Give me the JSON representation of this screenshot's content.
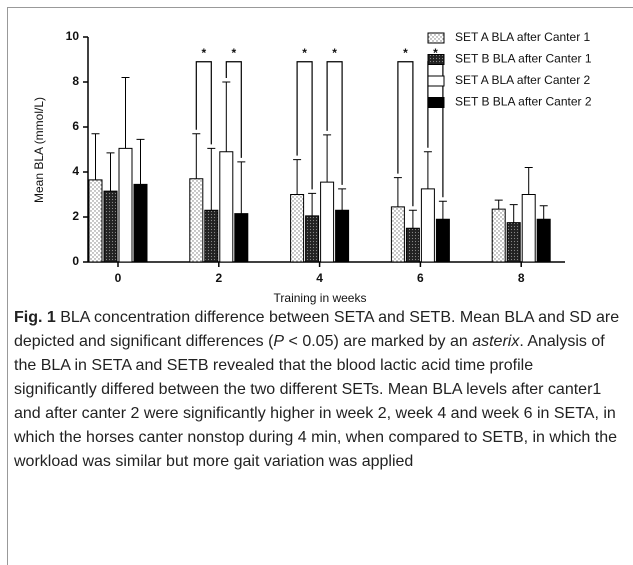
{
  "chart_data": {
    "type": "bar",
    "xlabel": "Training in weeks",
    "ylabel": "Mean BLA (mmol/L)",
    "categories": [
      "0",
      "2",
      "4",
      "6",
      "8"
    ],
    "ylim": [
      0,
      10
    ],
    "yticks": [
      0,
      2,
      4,
      6,
      8,
      10
    ],
    "legend": "top-right",
    "series": [
      {
        "name": "SET A BLA after Canter 1",
        "color": "#9a9a9a",
        "fill_style": "sparse-dots",
        "values": [
          3.65,
          3.7,
          3.0,
          2.45,
          2.35
        ],
        "errors": [
          2.05,
          2.0,
          1.55,
          1.3,
          0.4
        ]
      },
      {
        "name": "SET B BLA after Canter 1",
        "color": "#2a2a2a",
        "fill_style": "dense-dots",
        "values": [
          3.15,
          2.3,
          2.05,
          1.5,
          1.75
        ],
        "errors": [
          1.7,
          2.75,
          1.0,
          0.8,
          0.8
        ]
      },
      {
        "name": "SET A BLA after Canter 2",
        "color": "#ffffff",
        "fill_style": "solid",
        "values": [
          5.05,
          4.9,
          3.55,
          3.25,
          3.0
        ],
        "errors": [
          3.15,
          3.1,
          2.1,
          1.65,
          1.2
        ]
      },
      {
        "name": "SET B BLA after Canter 2",
        "color": "#000000",
        "fill_style": "solid",
        "values": [
          3.45,
          2.15,
          2.3,
          1.9,
          1.9
        ],
        "errors": [
          2.0,
          2.3,
          0.95,
          0.8,
          0.6
        ]
      }
    ],
    "annotations": [
      {
        "label": "*",
        "category": "2",
        "between": [
          "SET A BLA after Canter 1",
          "SET B BLA after Canter 1"
        ]
      },
      {
        "label": "*",
        "category": "2",
        "between": [
          "SET A BLA after Canter 2",
          "SET B BLA after Canter 2"
        ]
      },
      {
        "label": "*",
        "category": "4",
        "between": [
          "SET A BLA after Canter 1",
          "SET B BLA after Canter 1"
        ]
      },
      {
        "label": "*",
        "category": "4",
        "between": [
          "SET A BLA after Canter 2",
          "SET B BLA after Canter 2"
        ]
      },
      {
        "label": "*",
        "category": "6",
        "between": [
          "SET A BLA after Canter 1",
          "SET B BLA after Canter 1"
        ]
      },
      {
        "label": "*",
        "category": "6",
        "between": [
          "SET A BLA after Canter 2",
          "SET B BLA after Canter 2"
        ]
      }
    ]
  },
  "caption": {
    "label": "Fig. 1",
    "segments": [
      {
        "text": " BLA concentration difference between SETA and SETB. Mean BLA and SD are depicted and significant differences (",
        "italic": false
      },
      {
        "text": "P",
        "italic": true
      },
      {
        "text": " < 0.05) are marked by an ",
        "italic": false
      },
      {
        "text": "asterix",
        "italic": true
      },
      {
        "text": ". Analysis of the BLA in SETA and SETB revealed that the blood lactic acid time profile significantly differed between the two different SETs. Mean BLA levels after canter1 and after canter 2 were significantly higher in week 2, week 4 and week 6 in SETA, in which the horses canter nonstop during 4 min, when compared to SETB, in which the workload was similar but more gait variation was applied",
        "italic": false
      }
    ]
  }
}
